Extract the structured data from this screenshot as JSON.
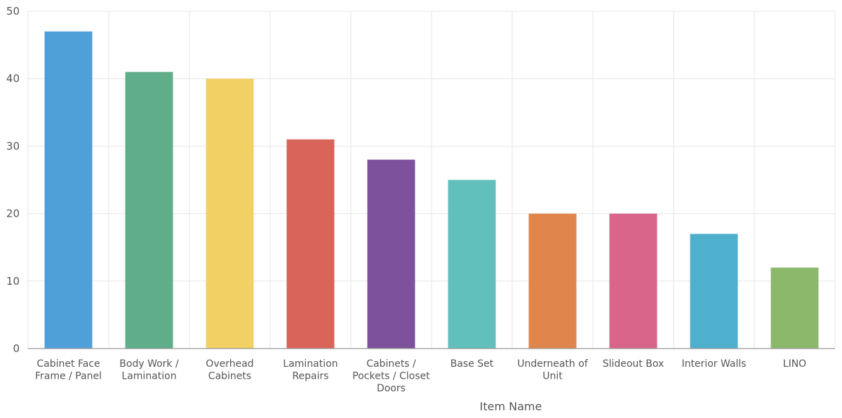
{
  "chart_data": {
    "type": "bar",
    "title": "",
    "xlabel": "Item Name",
    "ylabel": "",
    "ylim": [
      0,
      50
    ],
    "yticks": [
      "0",
      "10",
      "20",
      "30",
      "40",
      "50"
    ],
    "grid": true,
    "categories": [
      [
        "Cabinet Face",
        "Frame / Panel"
      ],
      [
        "Body Work /",
        "Lamination"
      ],
      [
        "Overhead",
        "Cabinets"
      ],
      [
        "Lamination",
        "Repairs"
      ],
      [
        "Cabinets /",
        "Pockets / Closet",
        "Doors"
      ],
      [
        "Base Set"
      ],
      [
        "Underneath of",
        "Unit"
      ],
      [
        "Slideout Box"
      ],
      [
        "Interior Walls"
      ],
      [
        "LINO"
      ]
    ],
    "values": [
      47,
      41,
      40,
      31,
      28,
      25,
      20,
      20,
      17,
      12
    ],
    "colors": [
      "#4f9fd8",
      "#5fad89",
      "#f2d063",
      "#d9645a",
      "#7d519b",
      "#61bfbc",
      "#e0864c",
      "#d9658a",
      "#4fb0cd",
      "#8bb86b"
    ]
  }
}
